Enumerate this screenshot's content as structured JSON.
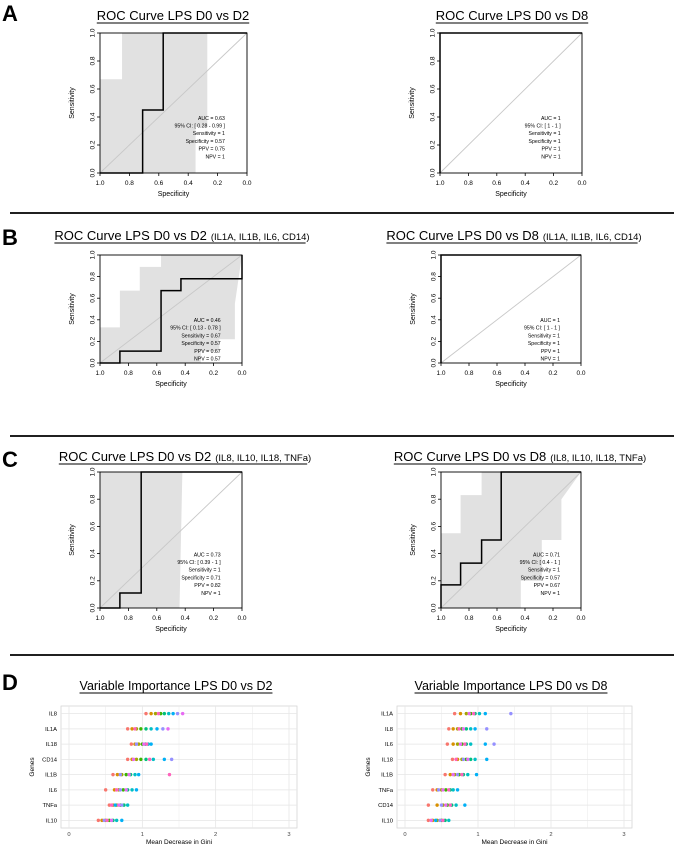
{
  "chart_data": [
    {
      "id": "A1",
      "type": "line",
      "panel": "A",
      "title": "ROC Curve LPS D0 vs D2",
      "xlabel": "Specificity",
      "ylabel": "Sensitivity",
      "xlim": [
        1.0,
        0.0
      ],
      "ylim": [
        0.0,
        1.0
      ],
      "xticks": [
        "1.0",
        "0.8",
        "0.6",
        "0.4",
        "0.2",
        "0.0"
      ],
      "yticks": [
        "0.0",
        "0.2",
        "0.4",
        "0.6",
        "0.8",
        "1.0"
      ],
      "curve": {
        "specificity": [
          1.0,
          0.71,
          0.71,
          0.57,
          0.57,
          0.0
        ],
        "sensitivity": [
          0.0,
          0.0,
          0.45,
          0.45,
          1.0,
          1.0
        ]
      },
      "ci_band": {
        "upper": {
          "specificity": [
            1.0,
            1.0,
            0.85,
            0.85,
            0.62,
            0.0
          ],
          "sensitivity": [
            0.0,
            0.67,
            0.67,
            1.0,
            1.0,
            1.0
          ]
        },
        "lower": {
          "specificity": [
            1.0,
            0.35,
            0.35,
            0.27,
            0.27,
            0.0
          ],
          "sensitivity": [
            0.0,
            0.0,
            0.33,
            0.33,
            1.0,
            1.0
          ]
        }
      },
      "stats": [
        "AUC = 0.63",
        "95% CI: [ 0.28 - 0.99 ]",
        "Sensitivity = 1",
        "Specificity = 0.57",
        "PPV = 0.75",
        "NPV = 1"
      ]
    },
    {
      "id": "A2",
      "type": "line",
      "panel": "A",
      "title": "ROC Curve LPS D0 vs D8",
      "xlabel": "Specificity",
      "ylabel": "Sensitivity",
      "xlim": [
        1.0,
        0.0
      ],
      "ylim": [
        0.0,
        1.0
      ],
      "xticks": [
        "1.0",
        "0.8",
        "0.6",
        "0.4",
        "0.2",
        "0.0"
      ],
      "yticks": [
        "0.0",
        "0.2",
        "0.4",
        "0.6",
        "0.8",
        "1.0"
      ],
      "curve": {
        "specificity": [
          1.0,
          1.0,
          0.0
        ],
        "sensitivity": [
          0.0,
          1.0,
          1.0
        ]
      },
      "stats": [
        "AUC = 1",
        "95% CI: [ 1 - 1 ]",
        "Sensitivity = 1",
        "Specificity = 1",
        "PPV = 1",
        "NPV = 1"
      ]
    },
    {
      "id": "B1",
      "type": "line",
      "panel": "B",
      "title": "ROC Curve LPS D0 vs D2",
      "subtitle": "(IL1A, IL1B, IL6, CD14)",
      "xlabel": "Specificity",
      "ylabel": "Sensitivity",
      "xlim": [
        1.0,
        0.0
      ],
      "ylim": [
        0.0,
        1.0
      ],
      "xticks": [
        "1.0",
        "0.8",
        "0.6",
        "0.4",
        "0.2",
        "0.0"
      ],
      "yticks": [
        "0.0",
        "0.2",
        "0.4",
        "0.6",
        "0.8",
        "1.0"
      ],
      "curve": {
        "specificity": [
          1.0,
          0.86,
          0.86,
          0.57,
          0.57,
          0.43,
          0.43,
          0.0,
          0.0
        ],
        "sensitivity": [
          0.0,
          0.0,
          0.11,
          0.11,
          0.67,
          0.67,
          0.78,
          0.78,
          1.0
        ]
      },
      "ci_band": {
        "upper": {
          "specificity": [
            1.0,
            1.0,
            0.86,
            0.86,
            0.72,
            0.72,
            0.57,
            0.57,
            0.0
          ],
          "sensitivity": [
            0.0,
            0.33,
            0.33,
            0.67,
            0.67,
            0.89,
            0.89,
            1.0,
            1.0
          ]
        },
        "lower": {
          "specificity": [
            1.0,
            0.29,
            0.29,
            0.16,
            0.16,
            0.05,
            0.05,
            0.0
          ],
          "sensitivity": [
            0.0,
            0.0,
            0.11,
            0.11,
            0.22,
            0.22,
            0.55,
            1.0
          ]
        }
      },
      "stats": [
        "AUC = 0.46",
        "95% CI: [ 0.13 - 0.78 ]",
        "Sensitivity = 0.67",
        "Specificity = 0.57",
        "PPV = 0.67",
        "NPV = 0.57"
      ]
    },
    {
      "id": "B2",
      "type": "line",
      "panel": "B",
      "title": "ROC Curve LPS D0 vs D8",
      "subtitle": "(IL1A, IL1B, IL6, CD14)",
      "xlabel": "Specificity",
      "ylabel": "Sensitivity",
      "xlim": [
        1.0,
        0.0
      ],
      "ylim": [
        0.0,
        1.0
      ],
      "xticks": [
        "1.0",
        "0.8",
        "0.6",
        "0.4",
        "0.2",
        "0.0"
      ],
      "yticks": [
        "0.0",
        "0.2",
        "0.4",
        "0.6",
        "0.8",
        "1.0"
      ],
      "curve": {
        "specificity": [
          1.0,
          1.0,
          0.0
        ],
        "sensitivity": [
          0.0,
          1.0,
          1.0
        ]
      },
      "stats": [
        "AUC = 1",
        "95% CI: [ 1 - 1 ]",
        "Sensitivity = 1",
        "Specificity = 1",
        "PPV = 1",
        "NPV = 1"
      ]
    },
    {
      "id": "C1",
      "type": "line",
      "panel": "C",
      "title": "ROC Curve LPS D0 vs D2",
      "subtitle": "(IL8, IL10, IL18, TNFa)",
      "xlabel": "Specificity",
      "ylabel": "Sensitivity",
      "xlim": [
        1.0,
        0.0
      ],
      "ylim": [
        0.0,
        1.0
      ],
      "xticks": [
        "1.0",
        "0.8",
        "0.6",
        "0.4",
        "0.2",
        "0.0"
      ],
      "yticks": [
        "0.0",
        "0.2",
        "0.4",
        "0.6",
        "0.8",
        "1.0"
      ],
      "curve": {
        "specificity": [
          1.0,
          0.86,
          0.86,
          0.71,
          0.71,
          0.0
        ],
        "sensitivity": [
          0.0,
          0.0,
          0.11,
          0.11,
          1.0,
          1.0
        ]
      },
      "ci_band": {
        "upper": {
          "specificity": [
            1.0,
            1.0,
            0.0
          ],
          "sensitivity": [
            0.0,
            1.0,
            1.0
          ]
        },
        "lower": {
          "specificity": [
            1.0,
            0.44,
            0.42,
            0.0
          ],
          "sensitivity": [
            0.0,
            0.0,
            1.0,
            1.0
          ]
        }
      },
      "stats": [
        "AUC = 0.73",
        "95% CI: [ 0.39 - 1 ]",
        "Sensitivity = 1",
        "Specificity = 0.71",
        "PPV = 0.82",
        "NPV = 1"
      ]
    },
    {
      "id": "C2",
      "type": "line",
      "panel": "C",
      "title": "ROC Curve LPS D0 vs D8",
      "subtitle": "(IL8, IL10, IL18, TNFa)",
      "xlabel": "Specificity",
      "ylabel": "Sensitivity",
      "xlim": [
        1.0,
        0.0
      ],
      "ylim": [
        0.0,
        1.0
      ],
      "xticks": [
        "1.0",
        "0.8",
        "0.6",
        "0.4",
        "0.2",
        "0.0"
      ],
      "yticks": [
        "0.0",
        "0.2",
        "0.4",
        "0.6",
        "0.8",
        "1.0"
      ],
      "curve": {
        "specificity": [
          1.0,
          1.0,
          0.86,
          0.86,
          0.71,
          0.71,
          0.57,
          0.57,
          0.0
        ],
        "sensitivity": [
          0.0,
          0.17,
          0.17,
          0.33,
          0.33,
          0.5,
          0.5,
          1.0,
          1.0
        ]
      },
      "ci_band": {
        "upper": {
          "specificity": [
            1.0,
            1.0,
            0.86,
            0.86,
            0.71,
            0.71,
            0.0
          ],
          "sensitivity": [
            0.0,
            0.55,
            0.55,
            0.83,
            0.83,
            1.0,
            1.0
          ]
        },
        "lower": {
          "specificity": [
            1.0,
            0.43,
            0.43,
            0.28,
            0.28,
            0.14,
            0.14,
            0.0
          ],
          "sensitivity": [
            0.0,
            0.0,
            0.2,
            0.2,
            0.5,
            0.5,
            0.8,
            1.0
          ]
        }
      },
      "stats": [
        "AUC = 0.71",
        "95% CI: [ 0.4 - 1 ]",
        "Sensitivity = 1",
        "Specificity = 0.57",
        "PPV = 0.67",
        "NPV = 1"
      ]
    },
    {
      "id": "D1",
      "type": "scatter",
      "panel": "D",
      "title": "Variable Importance LPS D0 vs D2",
      "xlabel": "Mean Decrease in Gini",
      "ylabel": "Genes",
      "xlim": [
        0,
        3
      ],
      "xticks": [
        "0",
        "1",
        "2",
        "3"
      ],
      "grid": true,
      "categories": [
        "IL8",
        "IL1A",
        "IL18",
        "CD14",
        "IL1B",
        "IL6",
        "TNFa",
        "IL10"
      ],
      "points": [
        [
          1.05,
          1.12,
          1.18,
          1.25,
          1.3,
          1.36,
          1.42,
          1.48,
          1.55,
          1.22
        ],
        [
          0.8,
          0.86,
          0.92,
          0.98,
          1.05,
          1.12,
          1.2,
          1.28,
          1.35,
          0.9
        ],
        [
          0.85,
          0.9,
          0.95,
          1.0,
          1.04,
          1.08,
          1.12,
          0.92,
          1.02,
          1.06
        ],
        [
          0.8,
          0.86,
          0.92,
          0.98,
          1.05,
          1.15,
          1.3,
          1.4,
          0.88,
          1.1
        ],
        [
          0.6,
          0.66,
          0.72,
          0.78,
          0.84,
          0.9,
          0.95,
          0.7,
          0.82,
          1.37
        ],
        [
          0.5,
          0.62,
          0.68,
          0.74,
          0.8,
          0.86,
          0.92,
          0.7,
          0.78,
          0.65
        ],
        [
          0.55,
          0.6,
          0.65,
          0.7,
          0.75,
          0.8,
          0.63,
          0.72,
          0.68,
          0.58
        ],
        [
          0.4,
          0.45,
          0.5,
          0.55,
          0.6,
          0.65,
          0.72,
          0.48,
          0.58,
          0.52
        ]
      ]
    },
    {
      "id": "D2",
      "type": "scatter",
      "panel": "D",
      "title": "Variable Importance LPS D0 vs D8",
      "xlabel": "Mean Decrease in Gini",
      "ylabel": "Genes",
      "xlim": [
        0,
        3
      ],
      "xticks": [
        "0",
        "1",
        "2",
        "3"
      ],
      "grid": true,
      "categories": [
        "IL1A",
        "IL8",
        "IL6",
        "IL18",
        "IL1B",
        "TNFa",
        "CD14",
        "IL10"
      ],
      "points": [
        [
          0.68,
          0.76,
          0.84,
          0.9,
          0.96,
          1.02,
          1.1,
          1.45,
          0.88,
          0.94
        ],
        [
          0.6,
          0.66,
          0.72,
          0.78,
          0.84,
          0.9,
          0.96,
          1.12,
          0.8,
          0.74
        ],
        [
          0.58,
          0.66,
          0.72,
          0.78,
          0.84,
          0.9,
          1.1,
          1.22,
          0.76,
          0.82
        ],
        [
          0.65,
          0.72,
          0.78,
          0.84,
          0.9,
          0.96,
          1.12,
          0.8,
          0.86,
          0.7
        ],
        [
          0.55,
          0.62,
          0.68,
          0.74,
          0.8,
          0.86,
          0.98,
          0.72,
          0.66,
          0.78
        ],
        [
          0.38,
          0.44,
          0.5,
          0.56,
          0.62,
          0.66,
          0.72,
          0.46,
          0.52,
          0.6
        ],
        [
          0.32,
          0.44,
          0.52,
          0.58,
          0.64,
          0.7,
          0.82,
          0.5,
          0.56,
          0.62
        ],
        [
          0.32,
          0.38,
          0.44,
          0.5,
          0.55,
          0.6,
          0.42,
          0.48,
          0.36,
          0.52
        ]
      ]
    }
  ],
  "panel_labels": [
    "A",
    "B",
    "C",
    "D"
  ],
  "colors": {
    "ci_band": "#e1e1e1",
    "diagonal": "#c8c8c8",
    "curve": "#000000",
    "grid": "#e6e6e6",
    "dots": [
      "#f8766d",
      "#d89000",
      "#a3a500",
      "#39b600",
      "#00bf7d",
      "#00bfc4",
      "#00b0f6",
      "#9590ff",
      "#e76bf3",
      "#ff62bc"
    ]
  }
}
